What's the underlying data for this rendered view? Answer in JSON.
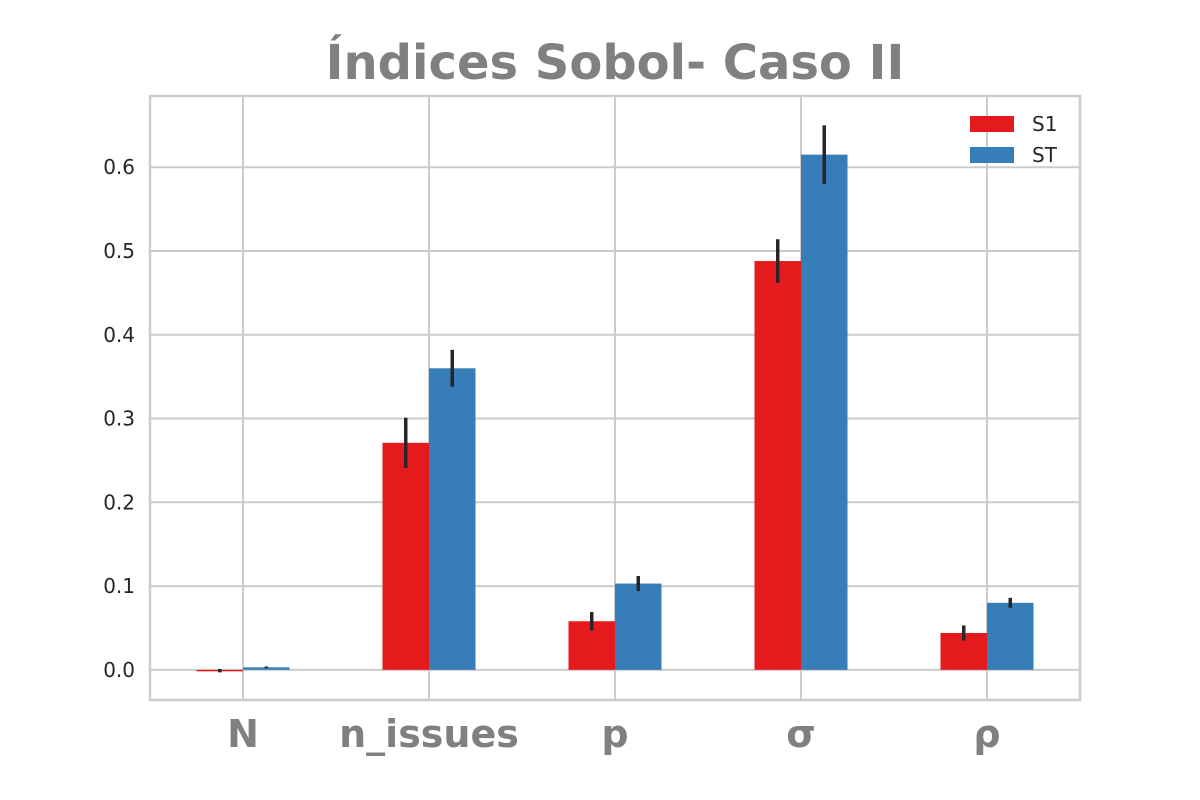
{
  "chart_data": {
    "type": "bar",
    "title": "Índices Sobol- Caso II",
    "xlabel": "",
    "ylabel": "",
    "categories": [
      "N",
      "n_issues",
      "p",
      "σ",
      "ρ"
    ],
    "series": [
      {
        "name": "S1",
        "color": "#e41a1c",
        "values": [
          -0.001,
          0.271,
          0.058,
          0.488,
          0.044
        ],
        "errors": [
          0.002,
          0.03,
          0.011,
          0.026,
          0.009
        ]
      },
      {
        "name": "ST",
        "color": "#377eb8",
        "values": [
          0.003,
          0.36,
          0.103,
          0.615,
          0.08
        ],
        "errors": [
          0.001,
          0.022,
          0.009,
          0.035,
          0.006
        ]
      }
    ],
    "ylim": [
      -0.036,
      0.685
    ],
    "yticks": [
      0.0,
      0.1,
      0.2,
      0.3,
      0.4,
      0.5,
      0.6
    ],
    "ytick_labels": [
      "0.0",
      "0.1",
      "0.2",
      "0.3",
      "0.4",
      "0.5",
      "0.6"
    ],
    "grid": true,
    "legend_position": "top-right",
    "error_bar_color": "#262626",
    "grid_color": "#cccccc"
  }
}
